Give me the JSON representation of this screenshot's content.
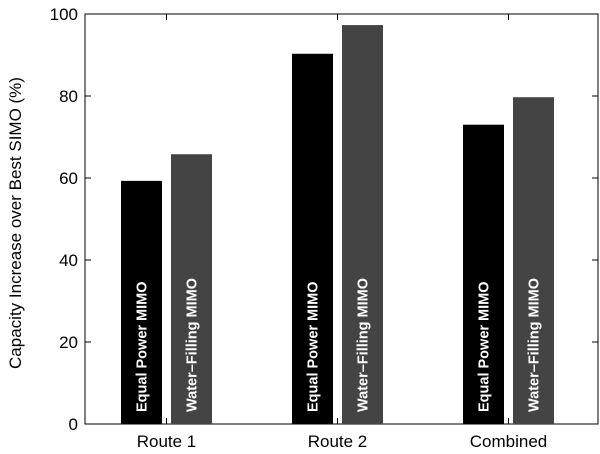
{
  "chart_data": {
    "type": "bar",
    "title": "",
    "xlabel": "",
    "ylabel": "Capacity Increase over Best SIMO (%)",
    "categories": [
      "Route 1",
      "Route 2",
      "Combined"
    ],
    "series": [
      {
        "name": "Equal Power MIMO",
        "values": [
          59.3,
          90.3,
          73.0
        ],
        "color": "#000000"
      },
      {
        "name": "Water–Filling MIMO",
        "values": [
          65.8,
          97.3,
          79.7
        ],
        "color": "#444444"
      }
    ],
    "ylim": [
      0,
      100
    ],
    "yticks": [
      0,
      20,
      40,
      60,
      80,
      100
    ],
    "grid": false,
    "legend": "none (series names printed vertically inside bars)"
  }
}
